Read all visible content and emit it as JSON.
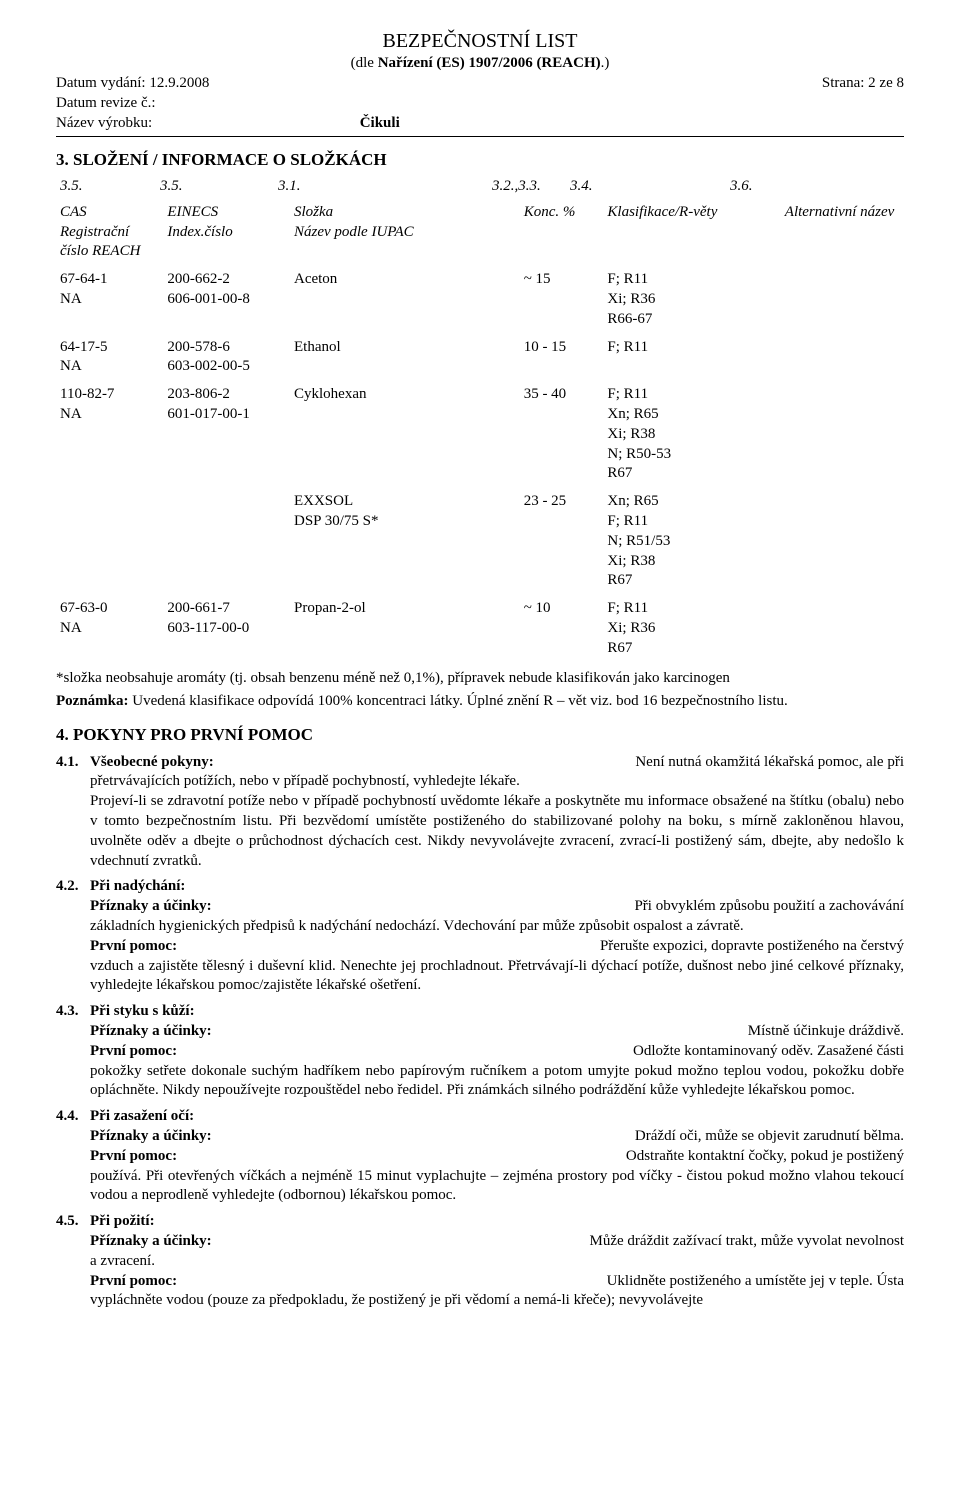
{
  "header": {
    "title": "BEZPEČNOSTNÍ LIST",
    "subtitle_prefix": "(dle ",
    "subtitle_bold": "Nařízení (ES) 1907/2006 (REACH)",
    "subtitle_suffix": ".)",
    "issue_label": "Datum vydání: ",
    "issue_date": "12.9.2008",
    "page_label": "Strana: ",
    "page_value": "2 ze 8",
    "rev_label": "Datum revize č.:",
    "prod_label": "Název výrobku:",
    "prod_name": "Čikuli"
  },
  "sec3": {
    "title": "3. SLOŽENÍ / INFORMACE O SLOŽKÁCH",
    "nums": [
      "3.5.",
      "3.5.",
      "3.1.",
      "3.2.,3.3.",
      "3.4.",
      "3.6."
    ],
    "th": {
      "cas": "CAS",
      "regnum": "Registrační číslo REACH",
      "einecs": "EINECS",
      "index": "Index.číslo",
      "component": "Složka",
      "iupac": "Název podle IUPAC",
      "conc": "Konc. %",
      "class": "Klasifikace/R-věty",
      "altname": "Alternativní název"
    },
    "rows": [
      {
        "cas": "67-64-1",
        "reg": "NA",
        "einecs": "200-662-2",
        "index": "606-001-00-8",
        "comp": "Aceton",
        "conc": "~ 15",
        "class": "F; R11\nXi; R36\nR66-67"
      },
      {
        "cas": "64-17-5",
        "reg": "NA",
        "einecs": "200-578-6",
        "index": "603-002-00-5",
        "comp": "Ethanol",
        "conc": "10 - 15",
        "class": "F; R11"
      },
      {
        "cas": "110-82-7",
        "reg": "NA",
        "einecs": "203-806-2",
        "index": "601-017-00-1",
        "comp": "Cyklohexan",
        "conc": "35 - 40",
        "class": "F; R11\nXn; R65\nXi; R38\nN; R50-53\nR67"
      },
      {
        "cas": "",
        "reg": "",
        "einecs": "",
        "index": "",
        "comp": "EXXSOL\nDSP 30/75 S*",
        "conc": "23 - 25",
        "class": "Xn; R65\nF; R11\nN; R51/53\nXi; R38\nR67"
      },
      {
        "cas": "67-63-0",
        "reg": "NA",
        "einecs": "200-661-7",
        "index": "603-117-00-0",
        "comp": "Propan-2-ol",
        "conc": "~ 10",
        "class": "F; R11\nXi; R36\nR67"
      }
    ],
    "footnote": "*složka neobsahuje aromáty (tj. obsah benzenu méně než 0,1%), přípravek nebude klasifikován jako karcinogen",
    "note_bold": "Poznámka: ",
    "note_rest": "Uvedená klasifikace odpovídá 100% koncentraci látky. Úplné znění R – vět viz. bod 16 bezpečnostního listu."
  },
  "sec4": {
    "title": "4. POKYNY PRO PRVNÍ POMOC",
    "items": [
      {
        "num": "4.1.",
        "label": "Všeobecné pokyny:",
        "lead": "Není nutná okamžitá lékařská pomoc, ale při ",
        "body": "přetrvávajících potížích, nebo v případě pochybností, vyhledejte lékaře.\nProjeví-li se zdravotní potíže nebo v případě pochybností uvědomte lékaře a poskytněte mu informace obsažené na štítku (obalu) nebo v tomto bezpečnostním listu. Při bezvědomí umístěte postiženého do stabilizované polohy na boku, s mírně zakloněnou hlavou, uvolněte oděv a dbejte o průchodnost dýchacích cest. Nikdy nevyvolávejte zvracení, zvrací-li postižený sám, dbejte, aby nedošlo k vdechnutí zvratků."
      },
      {
        "num": "4.2.",
        "label": "Při nadýchání:",
        "sym_label": "Příznaky a účinky:",
        "sym_text": "Při obvyklém způsobu použití a zachovávání ",
        "sym_cont": "základních hygienických předpisů k nadýchání nedochází. Vdechování par může způsobit ospalost a závratě.",
        "fa_label": "První pomoc:",
        "fa_text": "Přerušte expozici, dopravte postiženého na čerstvý ",
        "fa_cont": "vzduch a zajistěte tělesný i duševní klid. Nenechte jej prochladnout. Přetrvávají-li dýchací potíže, dušnost nebo jiné celkové příznaky, vyhledejte lékařskou pomoc/zajistěte lékařské ošetření."
      },
      {
        "num": "4.3.",
        "label": "Při styku s kůží:",
        "sym_label": "Příznaky a účinky:",
        "sym_text": "Místně účinkuje dráždivě.",
        "fa_label": "První pomoc:",
        "fa_text": "Odložte kontaminovaný oděv. Zasažené části ",
        "fa_cont": "pokožky setřete dokonale suchým hadříkem nebo papírovým ručníkem a potom umyjte pokud možno teplou vodou, pokožku dobře opláchněte. Nikdy nepoužívejte rozpouštědel nebo ředidel. Při známkách silného podráždění kůže vyhledejte lékařskou pomoc."
      },
      {
        "num": "4.4.",
        "label": "Při zasažení očí:",
        "sym_label": "Příznaky a účinky:",
        "sym_text": "Dráždí oči, může se objevit zarudnutí bělma.",
        "fa_label": "První pomoc:",
        "fa_text": "Odstraňte kontaktní čočky, pokud je postižený ",
        "fa_cont": "používá. Při otevřených víčkách a nejméně 15 minut vyplachujte – zejména prostory pod víčky - čistou pokud možno vlahou tekoucí vodou a neprodleně vyhledejte (odbornou) lékařskou pomoc."
      },
      {
        "num": "4.5.",
        "label": "Při požití:",
        "sym_label": "Příznaky a účinky:",
        "sym_text": "Může dráždit zažívací trakt, může vyvolat nevolnost ",
        "sym_cont": "a zvracení.",
        "fa_label": "První pomoc:",
        "fa_text": "Uklidněte postiženého a umístěte jej v teple. Ústa ",
        "fa_cont": "vypláchněte vodou (pouze za předpokladu, že postižený je při vědomí a nemá-li křeče); nevyvolávejte"
      }
    ]
  },
  "colwidths": {
    "c1": 100,
    "c2": 118,
    "c3": 214,
    "c4": 78,
    "c5": 160,
    "c6": 120
  }
}
